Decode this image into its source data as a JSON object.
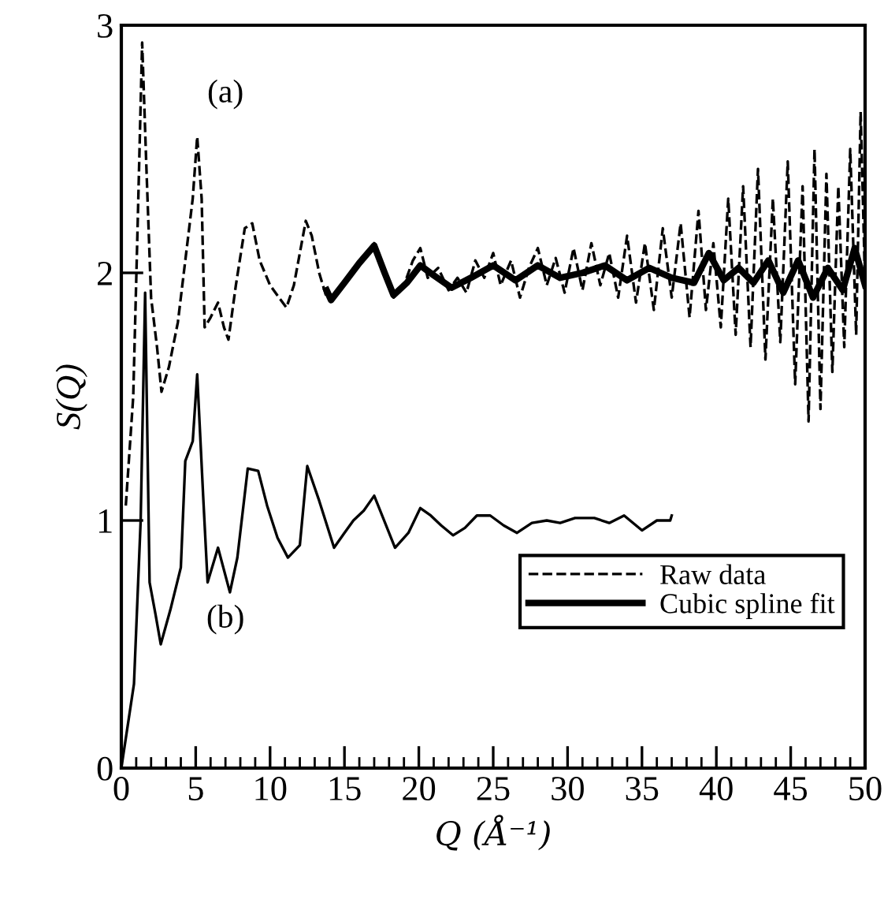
{
  "chart_data": {
    "type": "line",
    "xlabel": "Q (Å⁻¹)",
    "ylabel": "S(Q)",
    "xlim": [
      0,
      50
    ],
    "ylim": [
      0,
      3
    ],
    "xticks": [
      0,
      5,
      10,
      15,
      20,
      25,
      30,
      35,
      40,
      45,
      50
    ],
    "yticks": [
      0,
      1,
      2,
      3
    ],
    "grid": false,
    "legend": "bottom right",
    "marker": "none",
    "annotations": [
      "(a)",
      "(b)"
    ],
    "series": [
      {
        "color": "#000000",
        "line_style": "solid",
        "x": [
          0,
          0.85,
          1.3,
          1.6,
          1.9,
          2.3,
          2.65,
          3.3,
          4.0,
          4.3,
          4.8,
          5.1,
          5.5,
          5.8,
          6.5,
          7.3,
          7.8,
          8.5,
          9.2,
          9.8,
          10.5,
          11.2,
          12.0,
          12.5,
          13.3,
          14.3,
          15.0,
          15.6,
          16.3,
          17.0,
          17.6,
          18.4,
          19.3,
          20.1,
          20.8,
          21.5,
          22.3,
          23.1,
          23.9,
          24.8,
          25.7,
          26.6,
          27.6,
          28.6,
          29.5,
          30.5,
          31.8,
          32.8,
          33.8,
          35.0,
          36.0,
          36.9,
          37.0
        ],
        "values": [
          0,
          0.34,
          1.0,
          1.92,
          0.75,
          0.62,
          0.5,
          0.64,
          0.81,
          1.24,
          1.32,
          1.59,
          1.1,
          0.75,
          0.89,
          0.71,
          0.85,
          1.21,
          1.2,
          1.06,
          0.93,
          0.85,
          0.9,
          1.22,
          1.08,
          0.89,
          0.95,
          1.0,
          1.04,
          1.1,
          1.01,
          0.89,
          0.95,
          1.05,
          1.02,
          0.98,
          0.94,
          0.97,
          1.02,
          1.02,
          0.98,
          0.95,
          0.99,
          1.0,
          0.99,
          1.01,
          1.01,
          0.99,
          1.02,
          0.96,
          1.0,
          1.0,
          1.02
        ]
      },
      {
        "name": "Raw data",
        "color": "#000000",
        "line_style": "dashed",
        "x": [
          0.3,
          0.8,
          1.1,
          1.4,
          1.7,
          2.0,
          2.4,
          2.7,
          3.2,
          3.8,
          4.4,
          4.8,
          5.1,
          5.4,
          5.6,
          6.0,
          6.5,
          6.9,
          7.2,
          7.7,
          8.3,
          8.8,
          9.3,
          10.0,
          10.6,
          11.1,
          11.6,
          12.4,
          12.8,
          13.3,
          13.8,
          14.5,
          15.5,
          16.3,
          17.0,
          17.6,
          18.3,
          19.0,
          19.6,
          20.1,
          20.6,
          21.3,
          22.0,
          22.6,
          23.2,
          23.8,
          24.4,
          25.0,
          25.5,
          26.2,
          26.8,
          27.4,
          28.0,
          28.6,
          29.2,
          29.8,
          30.4,
          31.0,
          31.6,
          32.2,
          32.8,
          33.4,
          34.0,
          34.6,
          35.2,
          35.8,
          36.4,
          37.0,
          37.6,
          38.2,
          38.8,
          39.3,
          39.8,
          40.3,
          40.8,
          41.3,
          41.8,
          42.3,
          42.8,
          43.3,
          43.8,
          44.3,
          44.8,
          45.3,
          45.8,
          46.2,
          46.6,
          47.0,
          47.4,
          47.8,
          48.2,
          48.6,
          49.0,
          49.4,
          49.7,
          50.0
        ],
        "values": [
          1.06,
          1.5,
          2.2,
          2.93,
          2.4,
          1.9,
          1.7,
          1.52,
          1.62,
          1.8,
          2.1,
          2.3,
          2.55,
          2.3,
          1.78,
          1.82,
          1.88,
          1.78,
          1.73,
          1.95,
          2.18,
          2.2,
          2.05,
          1.95,
          1.9,
          1.86,
          1.95,
          2.21,
          2.15,
          2.0,
          1.9,
          1.92,
          2.0,
          2.05,
          2.12,
          2.02,
          1.9,
          1.95,
          2.05,
          2.1,
          1.98,
          2.02,
          1.93,
          1.98,
          1.92,
          2.05,
          1.98,
          2.08,
          1.95,
          2.05,
          1.9,
          2.02,
          2.1,
          1.95,
          2.06,
          1.92,
          2.1,
          1.93,
          2.12,
          1.95,
          2.08,
          1.9,
          2.15,
          1.88,
          2.12,
          1.85,
          2.18,
          1.9,
          2.2,
          1.82,
          2.25,
          1.85,
          2.12,
          1.78,
          2.3,
          1.75,
          2.35,
          1.7,
          2.42,
          1.65,
          2.3,
          1.72,
          2.45,
          1.55,
          2.35,
          1.4,
          2.5,
          1.45,
          2.4,
          1.6,
          2.35,
          1.7,
          2.5,
          1.75,
          2.65,
          1.95
        ]
      },
      {
        "name": "Cubic spline fit",
        "color": "#000000",
        "line_style": "solid",
        "x": [
          13.8,
          14.1,
          15.0,
          16.0,
          17.0,
          17.7,
          18.3,
          19.2,
          20.1,
          21.0,
          22.2,
          23.5,
          25.0,
          26.5,
          28.0,
          29.5,
          31.0,
          32.5,
          34.0,
          35.5,
          37.0,
          38.5,
          39.5,
          40.5,
          41.5,
          42.5,
          43.5,
          44.5,
          45.5,
          46.5,
          47.5,
          48.5,
          49.3,
          50.0
        ],
        "values": [
          1.93,
          1.89,
          1.96,
          2.04,
          2.11,
          2.0,
          1.91,
          1.96,
          2.03,
          1.99,
          1.94,
          1.98,
          2.03,
          1.97,
          2.03,
          1.98,
          2.0,
          2.03,
          1.97,
          2.02,
          1.98,
          1.96,
          2.08,
          1.97,
          2.02,
          1.96,
          2.05,
          1.92,
          2.05,
          1.9,
          2.02,
          1.93,
          2.1,
          1.95
        ]
      }
    ]
  }
}
